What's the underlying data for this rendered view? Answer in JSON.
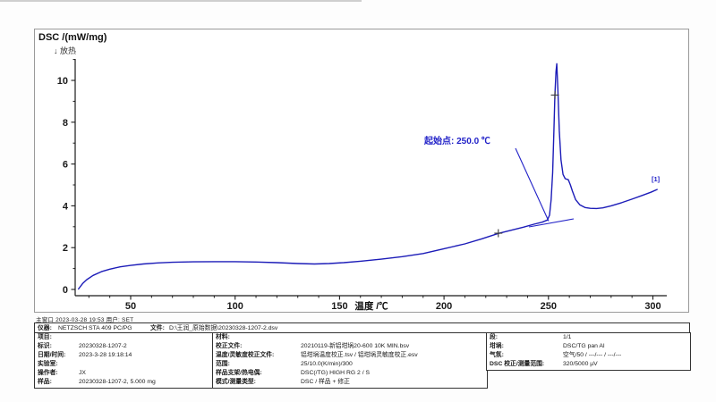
{
  "page": {
    "header_line": "主窗口   2023-03-28 19:53   用户: SET"
  },
  "chart": {
    "y_axis_title": "DSC /(mW/mg)",
    "exo_label": "↓ 放热",
    "x_axis_title": "温度 /℃",
    "onset_annotation": "起始点: 250.0 ℃",
    "curve_end_label": "[1]",
    "colors": {
      "curve": "#1c1cb8",
      "annotation": "#2222c8",
      "axis": "#1a1a1a",
      "marker": "#3a3a3a"
    }
  },
  "chart_data": {
    "type": "line",
    "title": "",
    "xlabel": "温度 /℃",
    "ylabel": "DSC /(mW/mg)",
    "exothermic_direction": "down",
    "xlim": [
      25,
      305
    ],
    "ylim": [
      -0.3,
      11
    ],
    "x_ticks": [
      50,
      100,
      150,
      200,
      250,
      300
    ],
    "y_ticks": [
      0,
      2,
      4,
      6,
      8,
      10
    ],
    "grid": false,
    "onset_celsius": 250.0,
    "peak": {
      "x": 254.0,
      "y": 10.8
    },
    "series": [
      {
        "name": "DSC [1]",
        "x": [
          25,
          27,
          29,
          32,
          36,
          40,
          45,
          50,
          56,
          63,
          70,
          80,
          90,
          100,
          110,
          120,
          130,
          138,
          145,
          152,
          160,
          170,
          180,
          190,
          200,
          210,
          218,
          226,
          232,
          238,
          243,
          247,
          249.5,
          250.5,
          251.3,
          252.0,
          252.6,
          253.1,
          253.6,
          254.0,
          254.5,
          255.2,
          256.0,
          257.0,
          258.0,
          259.5,
          260.5,
          261.5,
          263,
          265,
          267.5,
          270,
          273,
          276,
          280,
          285,
          290,
          295,
          299,
          302
        ],
        "y": [
          0.02,
          0.28,
          0.47,
          0.67,
          0.85,
          0.97,
          1.08,
          1.15,
          1.22,
          1.27,
          1.3,
          1.32,
          1.33,
          1.33,
          1.31,
          1.28,
          1.24,
          1.22,
          1.24,
          1.28,
          1.35,
          1.45,
          1.57,
          1.72,
          1.95,
          2.18,
          2.42,
          2.68,
          2.83,
          2.98,
          3.12,
          3.22,
          3.32,
          3.55,
          4.3,
          5.6,
          7.6,
          9.3,
          10.4,
          10.8,
          9.6,
          7.6,
          6.2,
          5.5,
          5.3,
          5.25,
          5.0,
          4.7,
          4.3,
          4.05,
          3.92,
          3.88,
          3.87,
          3.9,
          4.0,
          4.15,
          4.32,
          4.5,
          4.65,
          4.78
        ]
      }
    ],
    "markers": [
      {
        "x": 226,
        "y": 2.69
      },
      {
        "x": 253.1,
        "y": 9.3
      }
    ]
  },
  "table": {
    "instrument_row": {
      "label1": "仪器:",
      "value1": "NETZSCH STA 409 PC/PG",
      "label2": "文件:",
      "value2": "D:\\王润_原始数据\\20230328-1207-2.dsv"
    },
    "col1": [
      {
        "label": "项目:",
        "value": ""
      },
      {
        "label": "标识:",
        "value": "20230328-1207-2"
      },
      {
        "label": "日期/时间:",
        "value": "2023-3-28 19:18:14"
      },
      {
        "label": "实验室:",
        "value": ""
      },
      {
        "label": "操作者:",
        "value": "JX"
      },
      {
        "label": "样品:",
        "value": "20230328-1207-2, 5.000 mg"
      }
    ],
    "col2": [
      {
        "label": "材料:",
        "value": ""
      },
      {
        "label": "校正文件:",
        "value": "20210119-新铝坩埚20-600 10K MIN.bsv"
      },
      {
        "label": "温度/灵敏度校正文件:",
        "value": "铝坩埚温度校正.tsv / 铝坩埚灵敏度校正.esv"
      },
      {
        "label": "范围:",
        "value": "25/10.0(K/min)/300"
      },
      {
        "label": "样品支架/热电偶:",
        "value": "DSC(/TG) HIGH RG 2 / S"
      },
      {
        "label": "模式/测量类型:",
        "value": "DSC / 样品 + 修正"
      }
    ],
    "col3": [
      {
        "label": "段:",
        "value": "1/1"
      },
      {
        "label": "坩埚:",
        "value": "DSC/TG pan Al"
      },
      {
        "label": "气氛:",
        "value": "空气/50 / ---/--- / ---/---"
      },
      {
        "label": "DSC 校正/测量范围:",
        "value": "320/5000 µV"
      }
    ]
  }
}
